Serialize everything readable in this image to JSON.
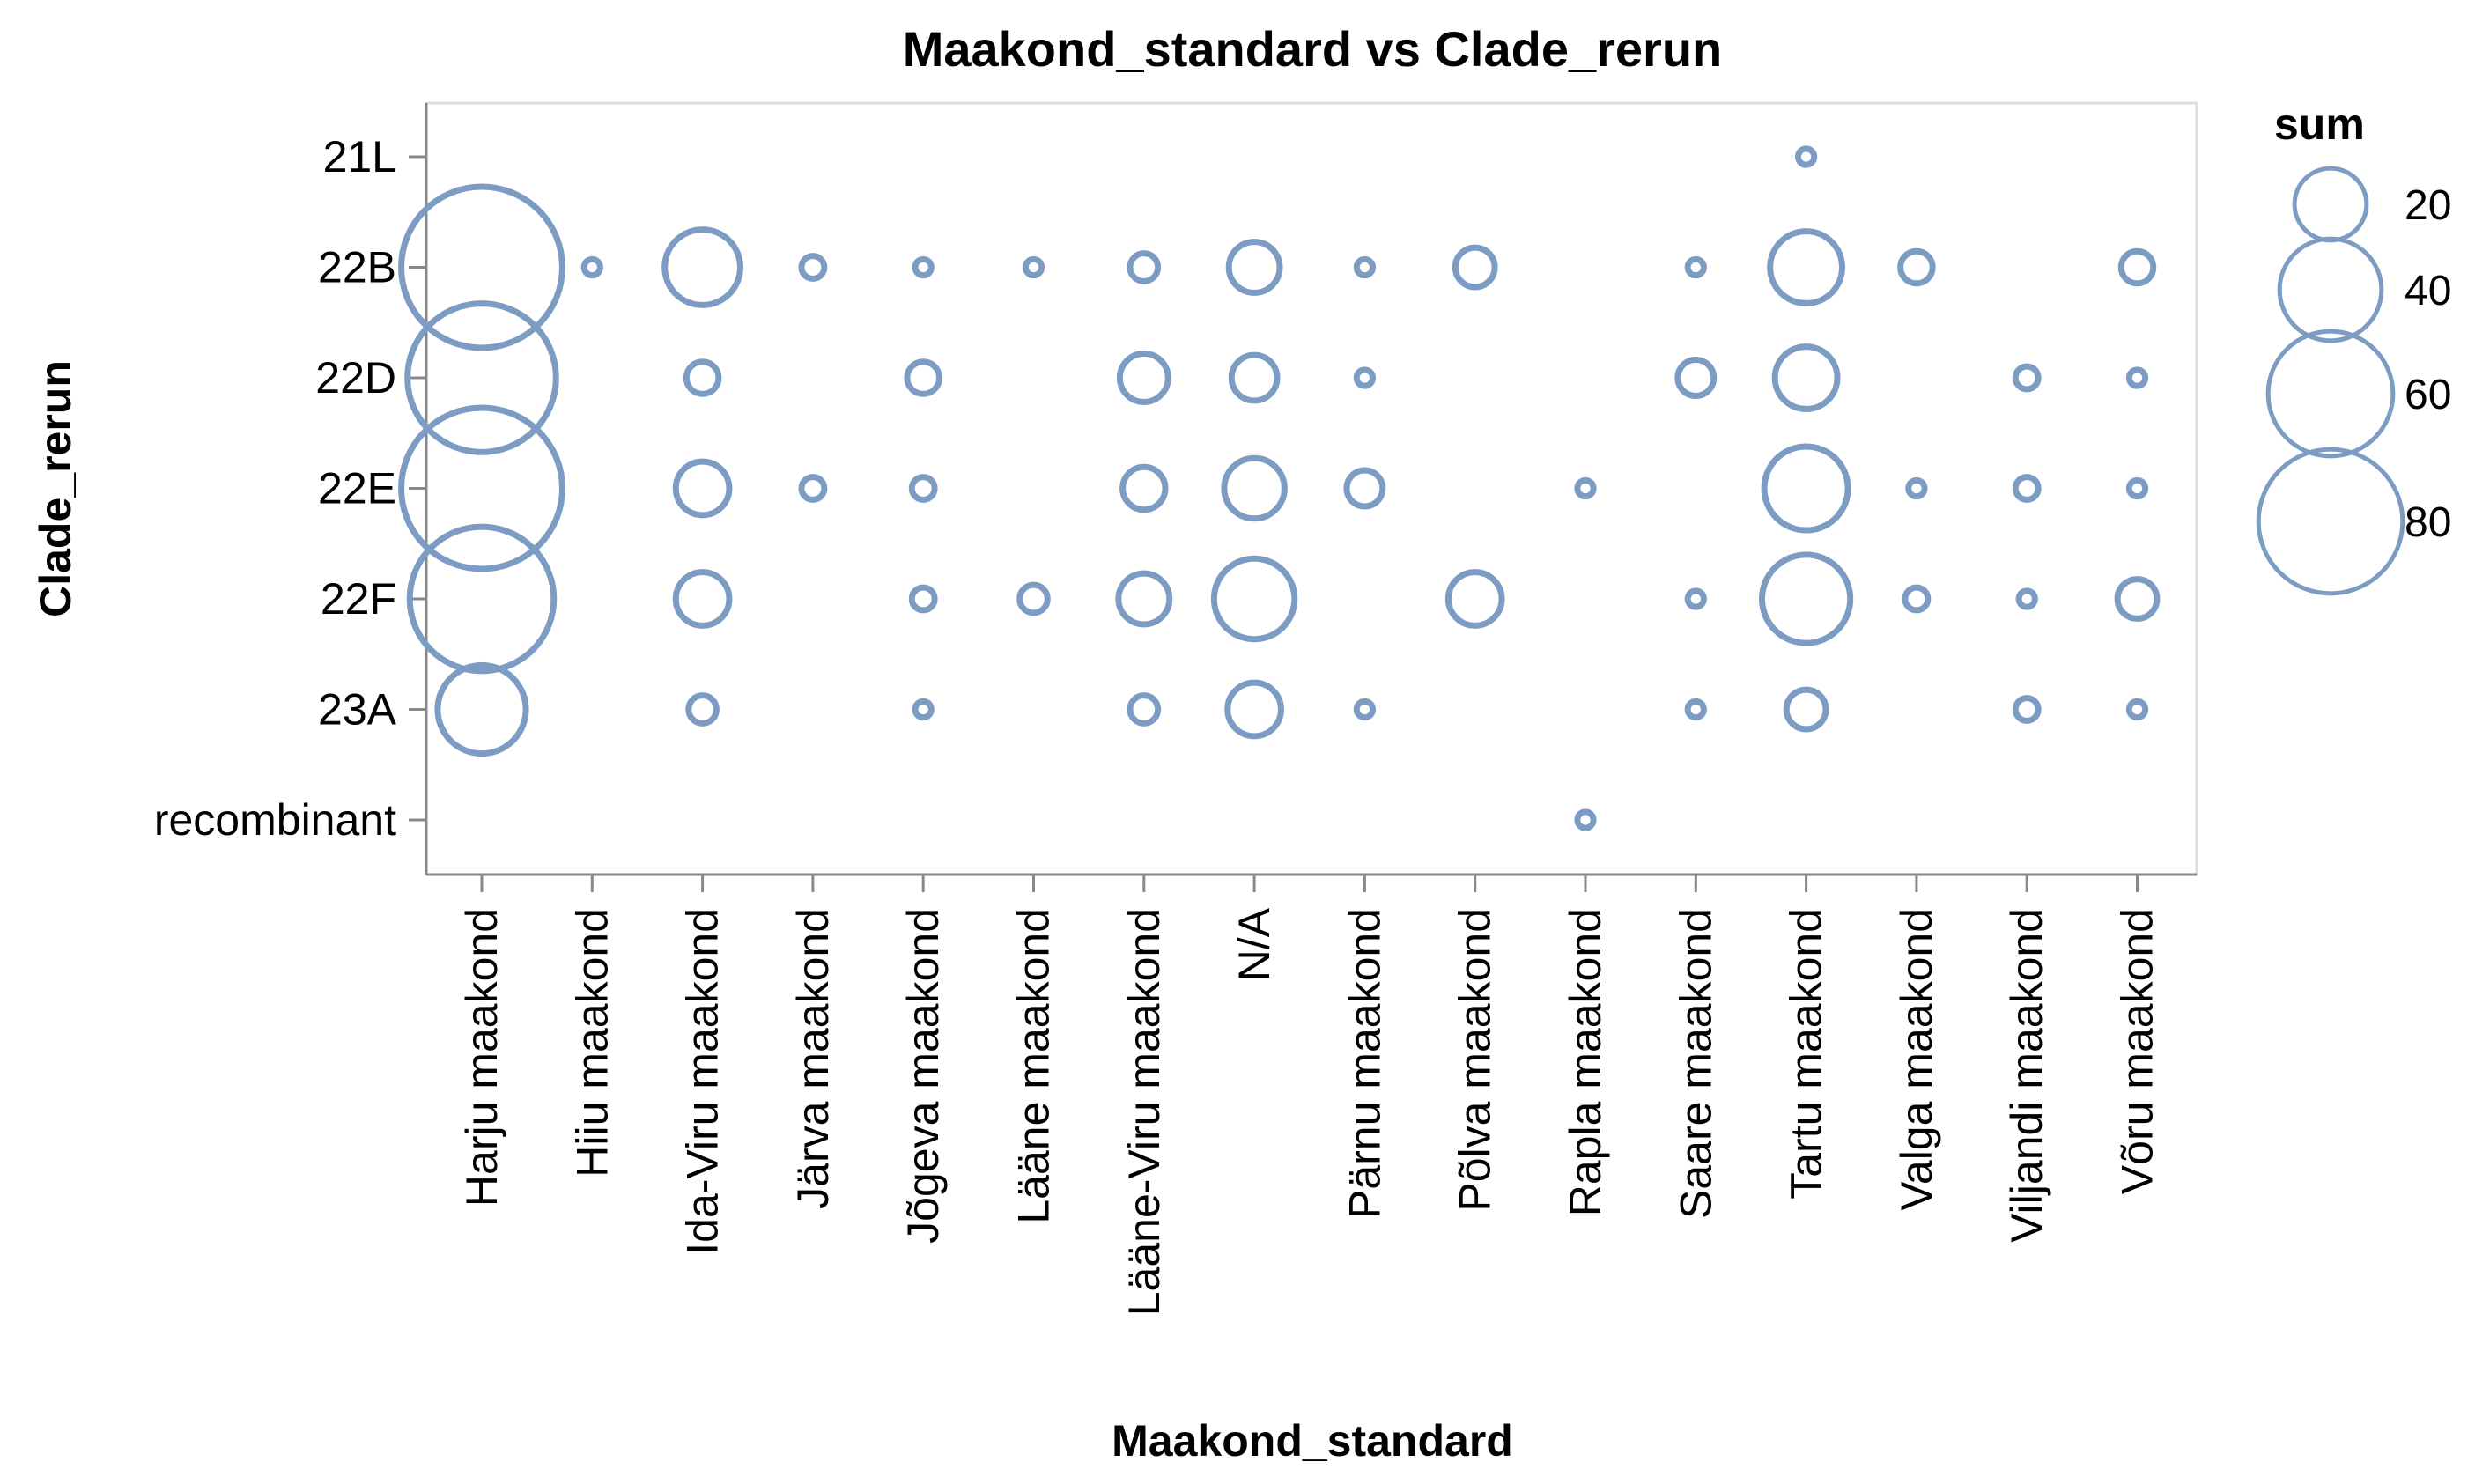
{
  "chart_data": {
    "type": "scatter",
    "title": "Maakond_standard vs Clade_rerun",
    "xlabel": "Maakond_standard",
    "ylabel": "Clade_rerun",
    "x_categories": [
      "Harju maakond",
      "Hiiu maakond",
      "Ida-Viru maakond",
      "Järva maakond",
      "Jõgeva maakond",
      "Lääne maakond",
      "Lääne-Viru maakond",
      "N/A",
      "Pärnu maakond",
      "Põlva maakond",
      "Rapla maakond",
      "Saare maakond",
      "Tartu maakond",
      "Valga maakond",
      "Viljandi maakond",
      "Võru maakond"
    ],
    "y_categories": [
      "21L",
      "22B",
      "22D",
      "22E",
      "22F",
      "23A",
      "recombinant"
    ],
    "size_field": "sum",
    "grid": false,
    "legend": {
      "title": "sum",
      "position": "right",
      "values": [
        20,
        40,
        60,
        80
      ]
    },
    "colors": {
      "mark": "#7d9cc4"
    },
    "points": [
      {
        "x": "Tartu maakond",
        "y": "21L",
        "sum": 1
      },
      {
        "x": "Harju maakond",
        "y": "22B",
        "sum": 100
      },
      {
        "x": "Hiiu maakond",
        "y": "22B",
        "sum": 1
      },
      {
        "x": "Ida-Viru maakond",
        "y": "22B",
        "sum": 22
      },
      {
        "x": "Järva maakond",
        "y": "22B",
        "sum": 2
      },
      {
        "x": "Jõgeva maakond",
        "y": "22B",
        "sum": 1
      },
      {
        "x": "Lääne maakond",
        "y": "22B",
        "sum": 1
      },
      {
        "x": "Lääne-Viru maakond",
        "y": "22B",
        "sum": 3
      },
      {
        "x": "N/A",
        "y": "22B",
        "sum": 10
      },
      {
        "x": "Pärnu maakond",
        "y": "22B",
        "sum": 1
      },
      {
        "x": "Põlva maakond",
        "y": "22B",
        "sum": 6
      },
      {
        "x": "Saare maakond",
        "y": "22B",
        "sum": 1
      },
      {
        "x": "Tartu maakond",
        "y": "22B",
        "sum": 20
      },
      {
        "x": "Valga maakond",
        "y": "22B",
        "sum": 4
      },
      {
        "x": "Võru maakond",
        "y": "22B",
        "sum": 4
      },
      {
        "x": "Harju maakond",
        "y": "22D",
        "sum": 85
      },
      {
        "x": "Ida-Viru maakond",
        "y": "22D",
        "sum": 4
      },
      {
        "x": "Jõgeva maakond",
        "y": "22D",
        "sum": 4
      },
      {
        "x": "Lääne-Viru maakond",
        "y": "22D",
        "sum": 9
      },
      {
        "x": "N/A",
        "y": "22D",
        "sum": 8
      },
      {
        "x": "Pärnu maakond",
        "y": "22D",
        "sum": 1
      },
      {
        "x": "Saare maakond",
        "y": "22D",
        "sum": 5
      },
      {
        "x": "Tartu maakond",
        "y": "22D",
        "sum": 15
      },
      {
        "x": "Viljandi maakond",
        "y": "22D",
        "sum": 2
      },
      {
        "x": "Võru maakond",
        "y": "22D",
        "sum": 1
      },
      {
        "x": "Harju maakond",
        "y": "22E",
        "sum": 100
      },
      {
        "x": "Ida-Viru maakond",
        "y": "22E",
        "sum": 11
      },
      {
        "x": "Järva maakond",
        "y": "22E",
        "sum": 2
      },
      {
        "x": "Jõgeva maakond",
        "y": "22E",
        "sum": 2
      },
      {
        "x": "Lääne-Viru maakond",
        "y": "22E",
        "sum": 7
      },
      {
        "x": "N/A",
        "y": "22E",
        "sum": 14
      },
      {
        "x": "Pärnu maakond",
        "y": "22E",
        "sum": 5
      },
      {
        "x": "Rapla maakond",
        "y": "22E",
        "sum": 1
      },
      {
        "x": "Tartu maakond",
        "y": "22E",
        "sum": 27
      },
      {
        "x": "Valga maakond",
        "y": "22E",
        "sum": 1
      },
      {
        "x": "Viljandi maakond",
        "y": "22E",
        "sum": 2
      },
      {
        "x": "Võru maakond",
        "y": "22E",
        "sum": 1
      },
      {
        "x": "Harju maakond",
        "y": "22F",
        "sum": 80
      },
      {
        "x": "Ida-Viru maakond",
        "y": "22F",
        "sum": 11
      },
      {
        "x": "Jõgeva maakond",
        "y": "22F",
        "sum": 2
      },
      {
        "x": "Lääne maakond",
        "y": "22F",
        "sum": 3
      },
      {
        "x": "Lääne-Viru maakond",
        "y": "22F",
        "sum": 10
      },
      {
        "x": "N/A",
        "y": "22F",
        "sum": 25
      },
      {
        "x": "Põlva maakond",
        "y": "22F",
        "sum": 11
      },
      {
        "x": "Saare maakond",
        "y": "22F",
        "sum": 1
      },
      {
        "x": "Tartu maakond",
        "y": "22F",
        "sum": 30
      },
      {
        "x": "Valga maakond",
        "y": "22F",
        "sum": 2
      },
      {
        "x": "Viljandi maakond",
        "y": "22F",
        "sum": 1
      },
      {
        "x": "Võru maakond",
        "y": "22F",
        "sum": 6
      },
      {
        "x": "Harju maakond",
        "y": "23A",
        "sum": 30
      },
      {
        "x": "Ida-Viru maakond",
        "y": "23A",
        "sum": 3
      },
      {
        "x": "Jõgeva maakond",
        "y": "23A",
        "sum": 1
      },
      {
        "x": "Lääne-Viru maakond",
        "y": "23A",
        "sum": 3
      },
      {
        "x": "N/A",
        "y": "23A",
        "sum": 11
      },
      {
        "x": "Pärnu maakond",
        "y": "23A",
        "sum": 1
      },
      {
        "x": "Saare maakond",
        "y": "23A",
        "sum": 1
      },
      {
        "x": "Tartu maakond",
        "y": "23A",
        "sum": 6
      },
      {
        "x": "Viljandi maakond",
        "y": "23A",
        "sum": 2
      },
      {
        "x": "Võru maakond",
        "y": "23A",
        "sum": 1
      },
      {
        "x": "Rapla maakond",
        "y": "recombinant",
        "sum": 1
      }
    ]
  }
}
